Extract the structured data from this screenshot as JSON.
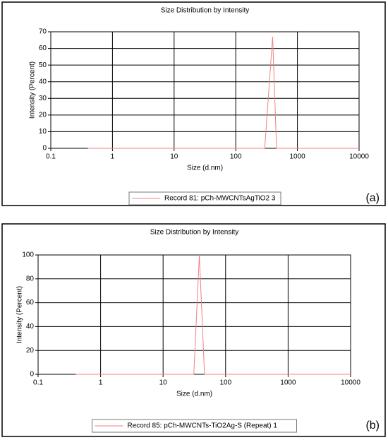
{
  "chart_data": [
    {
      "type": "line",
      "title": "Size Distribution by Intensity",
      "xlabel": "Size (d.nm)",
      "ylabel": "Intensity (Percent)",
      "xscale": "log",
      "grid": true,
      "legend": "bottom-center",
      "panel_label": "(a)",
      "x": [
        0.4,
        1,
        5,
        10,
        50,
        100,
        200,
        295,
        396,
        459,
        1000,
        5000,
        10000
      ],
      "series": [
        {
          "name": "Record 81: pCh-MWCNTsAgTiO2 3",
          "color": "#f08080",
          "values": [
            0,
            0,
            0,
            0,
            0,
            0,
            0,
            0,
            67,
            0,
            0,
            0,
            0
          ]
        }
      ],
      "xlim": [
        0.1,
        10000
      ],
      "xticks": [
        0.1,
        1,
        10,
        100,
        1000,
        10000
      ],
      "ylim": [
        0,
        70
      ],
      "yticks": [
        0,
        10,
        20,
        30,
        40,
        50,
        60,
        70
      ]
    },
    {
      "type": "line",
      "title": "Size Distribution by Intensity",
      "xlabel": "Size (d.nm)",
      "ylabel": "Intensity (Percent)",
      "xscale": "log",
      "grid": true,
      "legend": "bottom-center",
      "panel_label": "(b)",
      "x": [
        0.4,
        1,
        5,
        10,
        20,
        31,
        38,
        46,
        100,
        1000,
        5000,
        10000
      ],
      "series": [
        {
          "name": "Record 85: pCh-MWCNTs-TiO2Ag-S (Repeat) 1",
          "color": "#f08080",
          "values": [
            0,
            0,
            0,
            0,
            0,
            0,
            100,
            0,
            0,
            0,
            0,
            0
          ]
        }
      ],
      "xlim": [
        0.1,
        10000
      ],
      "xticks": [
        0.1,
        1,
        10,
        100,
        1000,
        10000
      ],
      "ylim": [
        0,
        100
      ],
      "yticks": [
        0,
        20,
        40,
        60,
        80,
        100
      ]
    }
  ]
}
